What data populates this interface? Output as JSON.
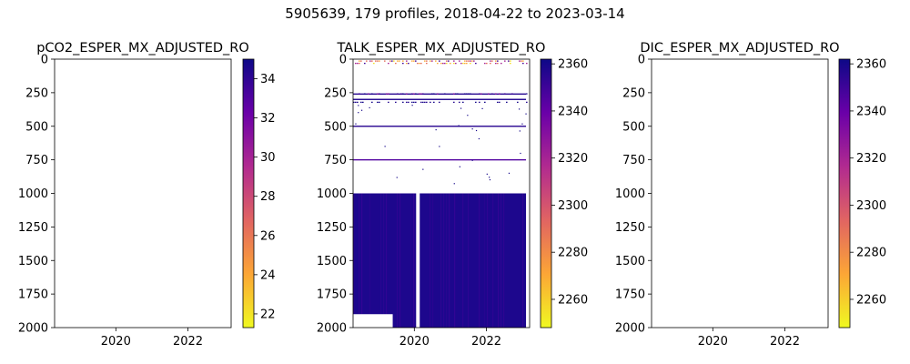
{
  "figure": {
    "suptitle": "5905639, 179 profiles, 2018-04-22 to 2023-03-14"
  },
  "colormap": {
    "name": "plasma-reversed",
    "stops": [
      "#f0f921",
      "#fca636",
      "#e16462",
      "#b12a90",
      "#6a00a8",
      "#0d0887"
    ]
  },
  "chart_data": [
    {
      "type": "heatmap",
      "title": "pCO2_ESPER_MX_ADJUSTED_RO",
      "xlim": [
        2018.3,
        2023.2
      ],
      "ylim": [
        2000,
        0
      ],
      "x_ticks": [
        2020,
        2022
      ],
      "y_ticks": [
        0,
        250,
        500,
        750,
        1000,
        1250,
        1500,
        1750,
        2000
      ],
      "colorbar": {
        "range": [
          21.3,
          35.0
        ],
        "ticks": [
          22,
          24,
          26,
          28,
          30,
          32,
          34
        ]
      },
      "data": "empty"
    },
    {
      "type": "heatmap",
      "title": "TALK_ESPER_MX_ADJUSTED_RO",
      "xlim": [
        2018.3,
        2023.2
      ],
      "ylim": [
        2000,
        0
      ],
      "x_ticks": [
        2020,
        2022
      ],
      "y_ticks": [
        0,
        250,
        500,
        750,
        1000,
        1250,
        1500,
        1750,
        2000
      ],
      "colorbar": {
        "range": [
          2248,
          2362
        ],
        "ticks": [
          2260,
          2280,
          2300,
          2320,
          2340,
          2360
        ]
      },
      "dense_block": {
        "x_range": [
          2018.3,
          2023.1
        ],
        "depth_range": [
          1000,
          2000
        ],
        "value": 2358
      },
      "bands": [
        {
          "depth_range": [
            10,
            90
          ],
          "x_range": [
            2018.3,
            2023.1
          ],
          "values": [
            2255,
            2270,
            2290,
            2320,
            2350
          ]
        },
        {
          "depth_range": [
            220,
            260
          ],
          "x_range": [
            2018.3,
            2023.1
          ],
          "values": [
            2330,
            2350,
            2358
          ]
        },
        {
          "depth_range": [
            300,
            320
          ],
          "x_range": [
            2018.3,
            2023.1
          ],
          "values": [
            2356,
            2360
          ]
        }
      ],
      "lines": [
        {
          "depth": 500,
          "x_range": [
            2018.3,
            2023.1
          ],
          "value": 2355
        },
        {
          "depth": 750,
          "x_range": [
            2018.3,
            2023.1
          ],
          "value": 2345
        },
        {
          "depth": 300,
          "x_range": [
            2018.3,
            2023.1
          ],
          "value": 2357
        },
        {
          "depth": 260,
          "x_range": [
            2018.3,
            2023.1
          ],
          "value": 2356
        }
      ],
      "gaps": [
        {
          "x_range": [
            2020.05,
            2020.15
          ],
          "depth_range": [
            1000,
            2000
          ]
        },
        {
          "x_range": [
            2018.3,
            2019.4
          ],
          "depth_range": [
            1900,
            2000
          ]
        }
      ]
    },
    {
      "type": "heatmap",
      "title": "DIC_ESPER_MX_ADJUSTED_RO",
      "xlim": [
        2018.3,
        2023.2
      ],
      "ylim": [
        2000,
        0
      ],
      "x_ticks": [
        2020,
        2022
      ],
      "y_ticks": [
        0,
        250,
        500,
        750,
        1000,
        1250,
        1500,
        1750,
        2000
      ],
      "colorbar": {
        "range": [
          2248,
          2362
        ],
        "ticks": [
          2260,
          2280,
          2300,
          2320,
          2340,
          2360
        ]
      },
      "data": "empty"
    }
  ]
}
